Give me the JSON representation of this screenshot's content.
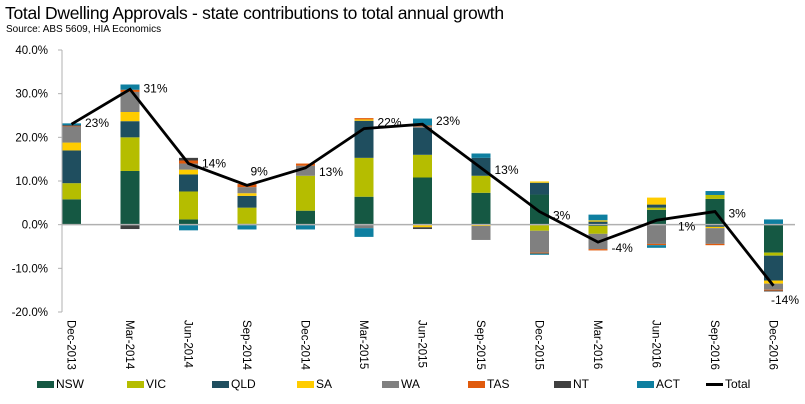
{
  "chart_data": {
    "type": "bar",
    "stacked": true,
    "title": "Total Dwelling Approvals - state contributions to total annual growth",
    "subtitle": "Source: ABS 5609, HIA Economics",
    "xlabel": "",
    "ylabel": "",
    "ylim": [
      -20,
      40
    ],
    "yticks": [
      "40.0%",
      "30.0%",
      "20.0%",
      "10.0%",
      "0.0%",
      "-10.0%",
      "-20.0%"
    ],
    "ytick_values": [
      40,
      30,
      20,
      10,
      0,
      -10,
      -20
    ],
    "grid": false,
    "legend_position": "bottom",
    "categories": [
      "Dec-2013",
      "Mar-2014",
      "Jun-2014",
      "Sep-2014",
      "Dec-2014",
      "Mar-2015",
      "Jun-2015",
      "Sep-2015",
      "Dec-2015",
      "Mar-2016",
      "Jun-2016",
      "Sep-2016",
      "Dec-2016"
    ],
    "series": [
      {
        "name": "NSW",
        "color": "#155843",
        "values": [
          5.8,
          12.3,
          1.2,
          0.2,
          3.2,
          6.4,
          10.8,
          7.3,
          6.9,
          -0.3,
          3.4,
          5.9,
          -6.4
        ]
      },
      {
        "name": "VIC",
        "color": "#b5bd00",
        "values": [
          3.7,
          7.7,
          6.4,
          3.7,
          8.0,
          8.9,
          5.2,
          3.9,
          -1.4,
          -1.8,
          0.5,
          0.9,
          -0.7
        ]
      },
      {
        "name": "QLD",
        "color": "#1f4e5f",
        "values": [
          7.5,
          3.7,
          3.9,
          2.7,
          0.0,
          8.5,
          6.2,
          4.1,
          2.7,
          0.7,
          0.7,
          -0.5,
          -5.7
        ]
      },
      {
        "name": "SA",
        "color": "#ffcc00",
        "values": [
          1.8,
          2.1,
          1.1,
          0.6,
          0.0,
          0.3,
          -0.6,
          -0.3,
          0.3,
          0.3,
          1.6,
          -0.3,
          -0.7
        ]
      },
      {
        "name": "WA",
        "color": "#808080",
        "values": [
          3.8,
          4.6,
          1.4,
          1.4,
          2.3,
          -0.8,
          0.3,
          -3.2,
          -5.0,
          -3.5,
          -4.4,
          -3.6,
          -1.4
        ]
      },
      {
        "name": "TAS",
        "color": "#e05a0c",
        "values": [
          0.1,
          0.5,
          0.7,
          0.7,
          0.5,
          0.3,
          0.2,
          0.0,
          -0.2,
          -0.3,
          -0.3,
          -0.3,
          -0.2
        ]
      },
      {
        "name": "NT",
        "color": "#404040",
        "values": [
          0.1,
          -1.0,
          0.6,
          0.0,
          0.0,
          0.0,
          -0.4,
          0.0,
          0.0,
          0.0,
          0.0,
          0.0,
          -0.2
        ]
      },
      {
        "name": "ACT",
        "color": "#0e7fa0",
        "values": [
          0.4,
          1.2,
          -1.3,
          -1.1,
          -1.1,
          -2.0,
          1.6,
          1.0,
          -0.3,
          1.3,
          -0.6,
          0.9,
          1.2
        ]
      }
    ],
    "total": {
      "name": "Total",
      "color": "#000000",
      "values": [
        23,
        31,
        14,
        9,
        13,
        22,
        23,
        13,
        3,
        -4,
        1,
        3,
        -14
      ]
    },
    "data_labels": [
      "23%",
      "31%",
      "14%",
      "9%",
      "13%",
      "22%",
      "23%",
      "13%",
      "3%",
      "-4%",
      "1%",
      "3%",
      "-14%"
    ]
  }
}
